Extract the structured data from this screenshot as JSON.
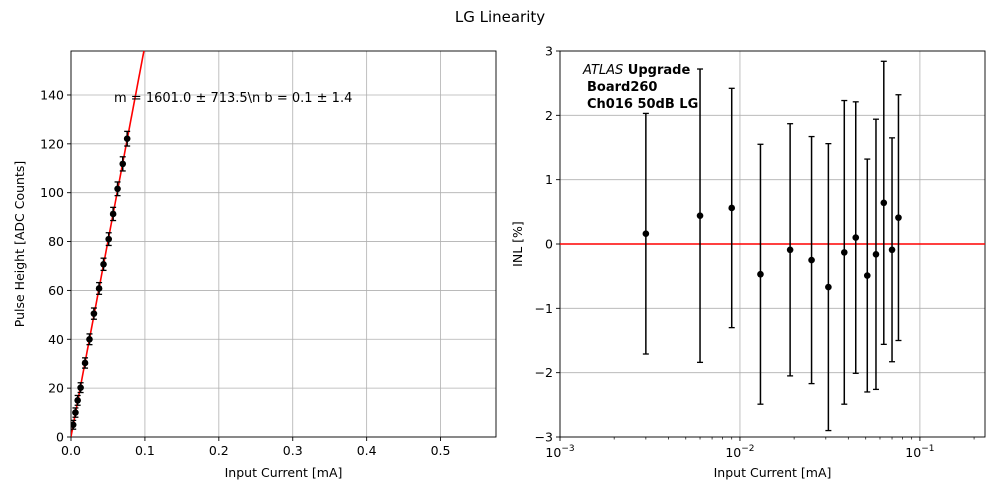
{
  "figure": {
    "title": "LG Linearity"
  },
  "chart_data": [
    {
      "type": "scatter",
      "xlabel": "Input Current [mA]",
      "ylabel": "Pulse Height [ADC Counts]",
      "xlim": [
        0,
        0.575
      ],
      "ylim": [
        0,
        158
      ],
      "xscale": "linear",
      "xticks": [
        0.0,
        0.1,
        0.2,
        0.3,
        0.4,
        0.5
      ],
      "xtick_labels": [
        "0.0",
        "0.1",
        "0.2",
        "0.3",
        "0.4",
        "0.5"
      ],
      "yticks": [
        0,
        20,
        40,
        60,
        80,
        100,
        120,
        140
      ],
      "ytick_labels": [
        "0",
        "20",
        "40",
        "60",
        "80",
        "100",
        "120",
        "140"
      ],
      "grid": true,
      "annotation": "m = 1601.0 ± 713.5\\n b = 0.1 ± 1.4",
      "fit": {
        "slope": 1601.0,
        "intercept": 0.1,
        "color": "#ff0000"
      },
      "points": [
        {
          "x": 0.003,
          "y": 5.0,
          "err": 1.8
        },
        {
          "x": 0.006,
          "y": 10.0,
          "err": 1.9
        },
        {
          "x": 0.009,
          "y": 15.0,
          "err": 2.0
        },
        {
          "x": 0.013,
          "y": 20.2,
          "err": 2.0
        },
        {
          "x": 0.019,
          "y": 30.3,
          "err": 2.1
        },
        {
          "x": 0.025,
          "y": 40.0,
          "err": 2.2
        },
        {
          "x": 0.031,
          "y": 50.5,
          "err": 2.3
        },
        {
          "x": 0.038,
          "y": 60.8,
          "err": 2.4
        },
        {
          "x": 0.044,
          "y": 70.7,
          "err": 2.5
        },
        {
          "x": 0.051,
          "y": 81.0,
          "err": 2.6
        },
        {
          "x": 0.057,
          "y": 91.3,
          "err": 2.7
        },
        {
          "x": 0.063,
          "y": 101.6,
          "err": 2.8
        },
        {
          "x": 0.07,
          "y": 111.8,
          "err": 2.9
        },
        {
          "x": 0.076,
          "y": 122.1,
          "err": 3.0
        }
      ]
    },
    {
      "type": "scatter",
      "xlabel": "Input Current [mA]",
      "ylabel": "INL [%]",
      "xlim": [
        0.001,
        0.23
      ],
      "ylim": [
        -3,
        3
      ],
      "xscale": "log",
      "xticks": [
        0.001,
        0.01,
        0.1
      ],
      "xtick_labels": [
        "10^-3",
        "10^-2",
        "10^-1"
      ],
      "yticks": [
        -3,
        -2,
        -1,
        0,
        1,
        2,
        3
      ],
      "ytick_labels": [
        "−3",
        "−2",
        "−1",
        "0",
        "1",
        "2",
        "3"
      ],
      "grid": true,
      "reference_line": {
        "y": 0,
        "color": "#ff0000"
      },
      "annotation_lines": [
        {
          "italic": "ATLAS",
          "bold": " Upgrade"
        },
        {
          "bold": "Board260"
        },
        {
          "bold": "Ch016 50dB LG"
        }
      ],
      "points": [
        {
          "x": 0.003,
          "y": 0.16,
          "err": 1.87
        },
        {
          "x": 0.006,
          "y": 0.44,
          "err": 2.28
        },
        {
          "x": 0.009,
          "y": 0.56,
          "err": 1.86
        },
        {
          "x": 0.013,
          "y": -0.47,
          "err": 2.02
        },
        {
          "x": 0.019,
          "y": -0.09,
          "err": 1.96
        },
        {
          "x": 0.025,
          "y": -0.25,
          "err": 1.92
        },
        {
          "x": 0.031,
          "y": -0.67,
          "err": 2.23
        },
        {
          "x": 0.038,
          "y": -0.13,
          "err": 2.36
        },
        {
          "x": 0.044,
          "y": 0.1,
          "err": 2.11
        },
        {
          "x": 0.051,
          "y": -0.49,
          "err": 1.81
        },
        {
          "x": 0.057,
          "y": -0.16,
          "err": 2.1
        },
        {
          "x": 0.063,
          "y": 0.64,
          "err": 2.2
        },
        {
          "x": 0.07,
          "y": -0.09,
          "err": 1.74
        },
        {
          "x": 0.076,
          "y": 0.41,
          "err": 1.91
        }
      ]
    }
  ]
}
